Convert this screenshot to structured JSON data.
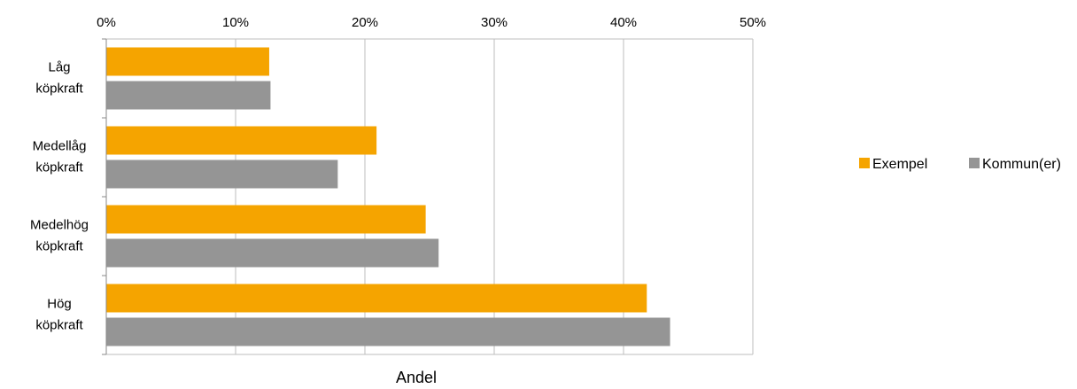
{
  "chart_data": {
    "type": "bar",
    "orientation": "horizontal",
    "title": "",
    "xlabel": "Andel",
    "ylabel": "",
    "xlim": [
      0,
      50
    ],
    "x_ticks": [
      "0%",
      "10%",
      "20%",
      "30%",
      "40%",
      "50%"
    ],
    "x_unit": "%",
    "x_axis_position": "top",
    "grid": true,
    "legend_position": "right",
    "categories": [
      [
        "Låg",
        "köpkraft"
      ],
      [
        "Medellåg",
        "köpkraft"
      ],
      [
        "Medelhög",
        "köpkraft"
      ],
      [
        "Hög",
        "köpkraft"
      ]
    ],
    "series": [
      {
        "name": "Exempel",
        "color": "#f5a400",
        "values": [
          12.6,
          20.9,
          24.7,
          41.8
        ]
      },
      {
        "name": "Kommun(er)",
        "color": "#959595",
        "values": [
          12.7,
          17.9,
          25.7,
          43.6
        ]
      }
    ]
  }
}
